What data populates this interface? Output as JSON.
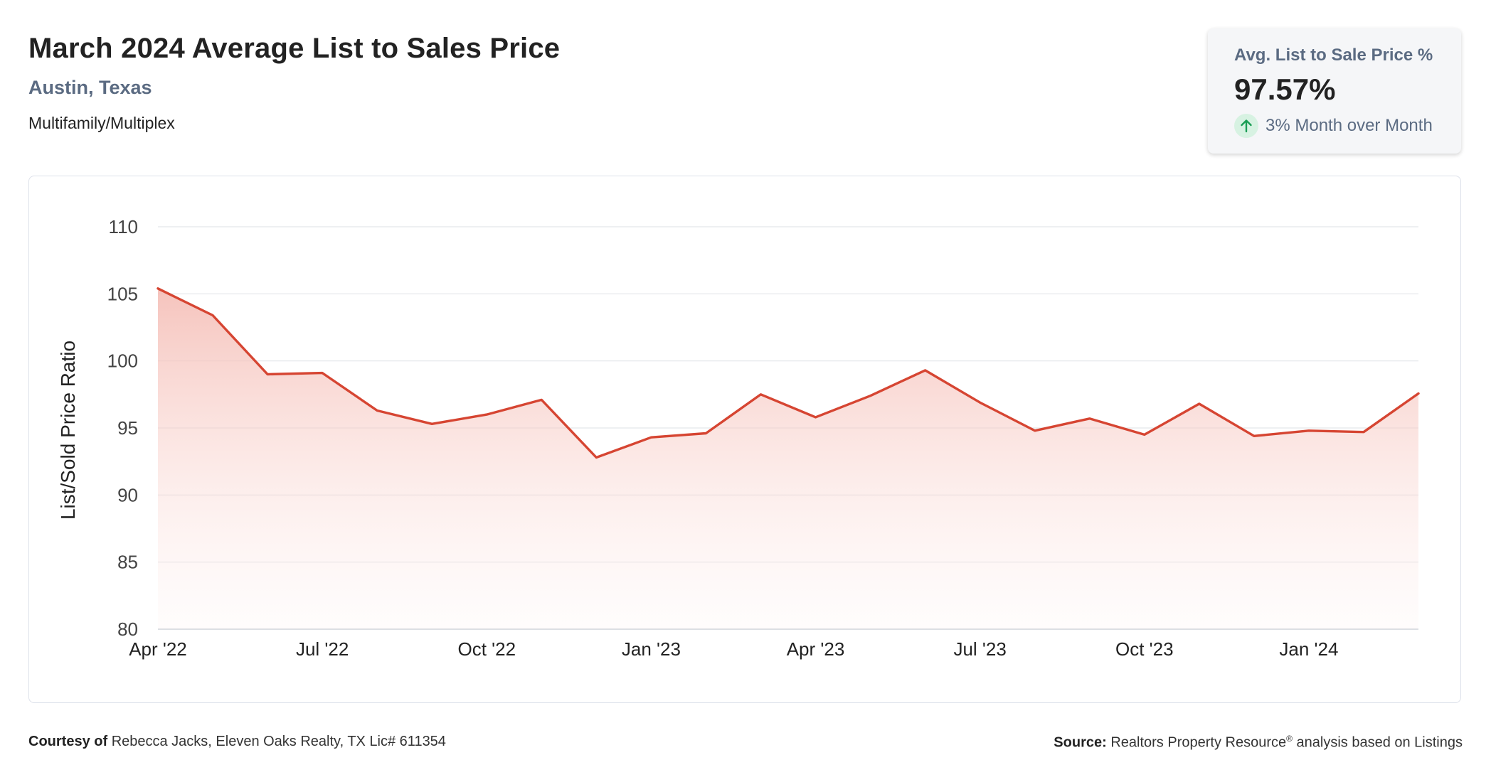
{
  "header": {
    "title": "March 2024 Average List to Sales Price",
    "location": "Austin, Texas",
    "category": "Multifamily/Multiplex"
  },
  "kpi": {
    "label": "Avg. List to Sale Price %",
    "value": "97.57%",
    "change": "3% Month over Month",
    "change_icon": "arrow-up-icon",
    "change_color": "#1a9e55"
  },
  "chart_data": {
    "type": "area",
    "title": "",
    "xlabel": "",
    "ylabel": "List/Sold Price Ratio",
    "x": [
      "Apr '22",
      "May '22",
      "Jun '22",
      "Jul '22",
      "Aug '22",
      "Sep '22",
      "Oct '22",
      "Nov '22",
      "Dec '22",
      "Jan '23",
      "Feb '23",
      "Mar '23",
      "Apr '23",
      "May '23",
      "Jun '23",
      "Jul '23",
      "Aug '23",
      "Sep '23",
      "Oct '23",
      "Nov '23",
      "Dec '23",
      "Jan '24",
      "Feb '24",
      "Mar '24"
    ],
    "x_tick_labels": [
      "Apr '22",
      "Jul '22",
      "Oct '22",
      "Jan '23",
      "Apr '23",
      "Jul '23",
      "Oct '23",
      "Jan '24"
    ],
    "y_ticks": [
      80,
      85,
      90,
      95,
      100,
      105,
      110
    ],
    "ylim": [
      80,
      110
    ],
    "series": [
      {
        "values": [
          105.4,
          103.4,
          99.0,
          99.1,
          96.3,
          95.3,
          96.0,
          97.1,
          92.8,
          94.3,
          94.6,
          97.5,
          95.8,
          97.4,
          99.3,
          96.9,
          94.8,
          95.7,
          94.5,
          96.8,
          94.4,
          94.8,
          94.7,
          97.57
        ],
        "color": "#d64532"
      }
    ],
    "grid": true,
    "legend": "none"
  },
  "footer": {
    "courtesy_label": "Courtesy of",
    "courtesy_text": "Rebecca Jacks, Eleven Oaks Realty, TX Lic# 611354",
    "source_label": "Source:",
    "source_text": "Realtors Property Resource",
    "source_mark": "®",
    "source_suffix": "analysis based on Listings"
  }
}
